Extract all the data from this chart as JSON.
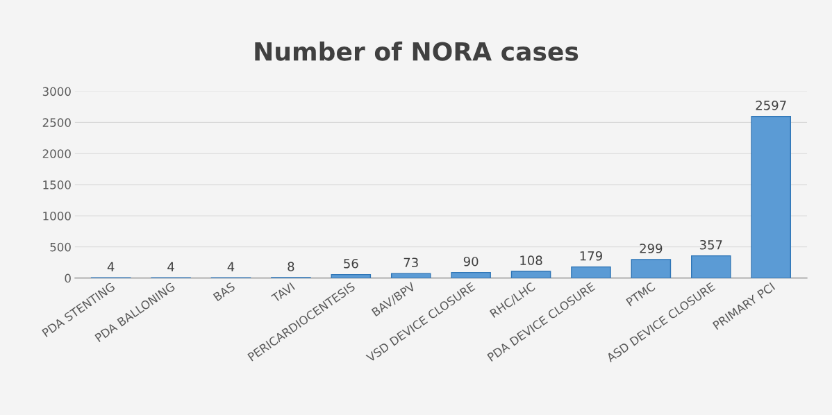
{
  "chart_data": {
    "type": "bar",
    "title": "Number of NORA cases",
    "categories": [
      "PDA STENTING",
      "PDA BALLONING",
      "BAS",
      "TAVI",
      "PERICARDIOCENTESIS",
      "BAV/BPV",
      "VSD DEVICE CLOSURE",
      "RHC/LHC",
      "PDA DEVICE CLOSURE",
      "PTMC",
      "ASD DEVICE CLOSURE",
      "PRIMARY PCI"
    ],
    "values": [
      4,
      4,
      4,
      8,
      56,
      73,
      90,
      108,
      179,
      299,
      357,
      2597
    ],
    "color": "#5b9bd5",
    "ylim": [
      0,
      3000
    ],
    "yticks": [
      0,
      500,
      1000,
      1500,
      2000,
      2500,
      3000
    ],
    "grid": "y",
    "data_labels": true
  }
}
